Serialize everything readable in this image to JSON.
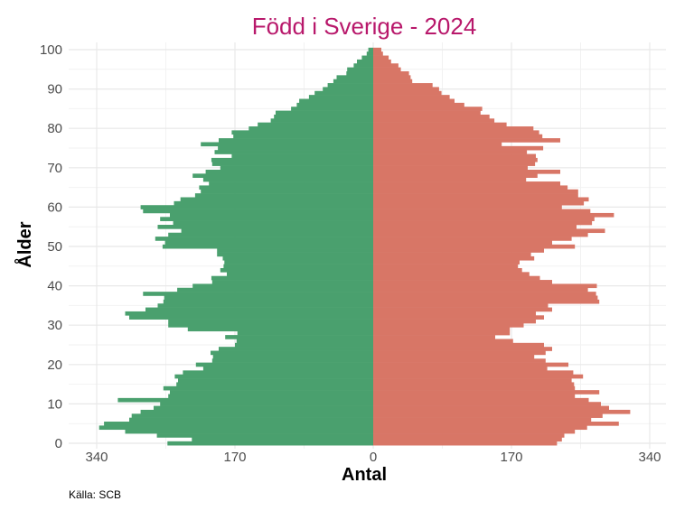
{
  "chart_data": {
    "type": "bar",
    "orientation": "horizontal",
    "layout": "population-pyramid",
    "title": "Född i Sverige - 2024",
    "xlabel": "Antal",
    "ylabel": "Ålder",
    "source": "Källa: SCB",
    "x_ticks": [
      {
        "value": -340,
        "label": "340"
      },
      {
        "value": -170,
        "label": "170"
      },
      {
        "value": 0,
        "label": "0"
      },
      {
        "value": 170,
        "label": "170"
      },
      {
        "value": 340,
        "label": "340"
      }
    ],
    "y_ticks": [
      0,
      10,
      20,
      30,
      40,
      50,
      60,
      70,
      80,
      90,
      100
    ],
    "xlim": [
      -340,
      340
    ],
    "ylim": [
      0,
      100
    ],
    "grid": true,
    "colors": {
      "left": "#4aa06e",
      "right": "#d87666",
      "title": "#b8186b",
      "grid": "#ebebeb"
    },
    "ages": [
      0,
      1,
      2,
      3,
      4,
      5,
      6,
      7,
      8,
      9,
      10,
      11,
      12,
      13,
      14,
      15,
      16,
      17,
      18,
      19,
      20,
      21,
      22,
      23,
      24,
      25,
      26,
      27,
      28,
      29,
      30,
      31,
      32,
      33,
      34,
      35,
      36,
      37,
      38,
      39,
      40,
      41,
      42,
      43,
      44,
      45,
      46,
      47,
      48,
      49,
      50,
      51,
      52,
      53,
      54,
      55,
      56,
      57,
      58,
      59,
      60,
      61,
      62,
      63,
      64,
      65,
      66,
      67,
      68,
      69,
      70,
      71,
      72,
      73,
      74,
      75,
      76,
      77,
      78,
      79,
      80,
      81,
      82,
      83,
      84,
      85,
      86,
      87,
      88,
      89,
      90,
      91,
      92,
      93,
      94,
      95,
      96,
      97,
      98,
      99,
      100
    ],
    "series": [
      {
        "side": "left",
        "values": [
          253,
          223,
          266,
          305,
          337,
          331,
          300,
          297,
          286,
          270,
          262,
          314,
          252,
          250,
          258,
          242,
          240,
          244,
          234,
          209,
          218,
          198,
          197,
          200,
          190,
          170,
          168,
          182,
          167,
          228,
          252,
          252,
          300,
          305,
          280,
          265,
          258,
          257,
          283,
          241,
          222,
          198,
          199,
          180,
          188,
          184,
          183,
          185,
          192,
          192,
          259,
          256,
          268,
          252,
          236,
          265,
          246,
          262,
          250,
          283,
          286,
          245,
          237,
          219,
          212,
          214,
          202,
          209,
          222,
          206,
          188,
          198,
          199,
          174,
          195,
          191,
          212,
          190,
          172,
          174,
          153,
          142,
          126,
          122,
          120,
          101,
          94,
          91,
          79,
          72,
          62,
          56,
          49,
          45,
          33,
          32,
          24,
          20,
          14,
          8,
          6
        ]
      },
      {
        "side": "right",
        "values": [
          226,
          232,
          235,
          248,
          263,
          302,
          268,
          282,
          316,
          290,
          280,
          265,
          248,
          278,
          248,
          247,
          244,
          258,
          246,
          214,
          240,
          212,
          198,
          212,
          220,
          210,
          172,
          150,
          168,
          168,
          185,
          200,
          210,
          200,
          220,
          215,
          278,
          276,
          274,
          264,
          275,
          220,
          205,
          192,
          183,
          178,
          180,
          198,
          194,
          210,
          248,
          220,
          244,
          264,
          285,
          250,
          269,
          272,
          296,
          267,
          232,
          259,
          265,
          252,
          252,
          239,
          230,
          188,
          202,
          230,
          190,
          199,
          202,
          200,
          189,
          209,
          158,
          230,
          208,
          204,
          197,
          164,
          149,
          143,
          132,
          134,
          112,
          100,
          94,
          84,
          81,
          73,
          48,
          46,
          44,
          34,
          31,
          22,
          19,
          12,
          10
        ]
      }
    ]
  }
}
